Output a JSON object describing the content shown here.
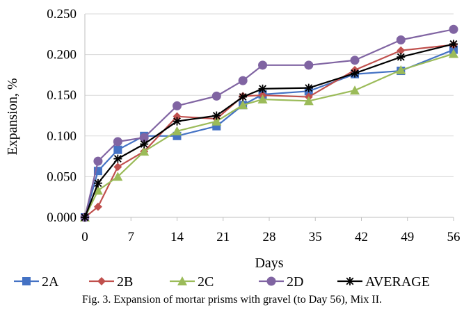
{
  "caption": "Fig. 3. Expansion of mortar prisms with gravel (to Day 56), Mix II.",
  "chart_data": {
    "type": "line",
    "title": "",
    "xlabel": "Days",
    "ylabel": "Expansion, %",
    "xlim": [
      0,
      56
    ],
    "ylim": [
      0,
      0.25
    ],
    "xticks": [
      "0",
      "7",
      "14",
      "21",
      "28",
      "35",
      "42",
      "49",
      "56"
    ],
    "yticks": [
      "0.000",
      "0.050",
      "0.100",
      "0.150",
      "0.200",
      "0.250"
    ],
    "grid": "horizontal",
    "legend_position": "bottom",
    "series": [
      {
        "name": "2A",
        "color": "#4472C4",
        "marker": "square",
        "x": [
          0,
          2,
          5,
          9,
          14,
          20,
          24,
          27,
          34,
          41,
          48,
          56
        ],
        "y": [
          0.0,
          0.057,
          0.083,
          0.1,
          0.1,
          0.112,
          0.138,
          0.151,
          0.155,
          0.176,
          0.18,
          0.206
        ]
      },
      {
        "name": "2B",
        "color": "#C0504D",
        "marker": "diamond",
        "x": [
          0,
          2,
          5,
          9,
          14,
          20,
          24,
          27,
          34,
          41,
          48,
          56
        ],
        "y": [
          0.0,
          0.013,
          0.062,
          0.081,
          0.124,
          0.121,
          0.149,
          0.15,
          0.148,
          0.181,
          0.205,
          0.212
        ]
      },
      {
        "name": "2C",
        "color": "#9BBB59",
        "marker": "triangle",
        "x": [
          0,
          2,
          5,
          9,
          14,
          20,
          24,
          27,
          34,
          41,
          48,
          56
        ],
        "y": [
          0.0,
          0.033,
          0.05,
          0.081,
          0.106,
          0.118,
          0.138,
          0.145,
          0.143,
          0.156,
          0.181,
          0.201
        ]
      },
      {
        "name": "2D",
        "color": "#8064A2",
        "marker": "circle",
        "x": [
          0,
          2,
          5,
          9,
          14,
          20,
          24,
          27,
          34,
          41,
          48,
          56
        ],
        "y": [
          0.0,
          0.069,
          0.093,
          0.098,
          0.137,
          0.149,
          0.168,
          0.187,
          0.187,
          0.193,
          0.218,
          0.231
        ]
      },
      {
        "name": "AVERAGE",
        "color": "#000000",
        "marker": "star",
        "x": [
          0,
          2,
          5,
          9,
          14,
          20,
          24,
          27,
          34,
          41,
          48,
          56
        ],
        "y": [
          0.0,
          0.042,
          0.072,
          0.09,
          0.118,
          0.125,
          0.148,
          0.158,
          0.159,
          0.177,
          0.197,
          0.213
        ]
      }
    ]
  }
}
